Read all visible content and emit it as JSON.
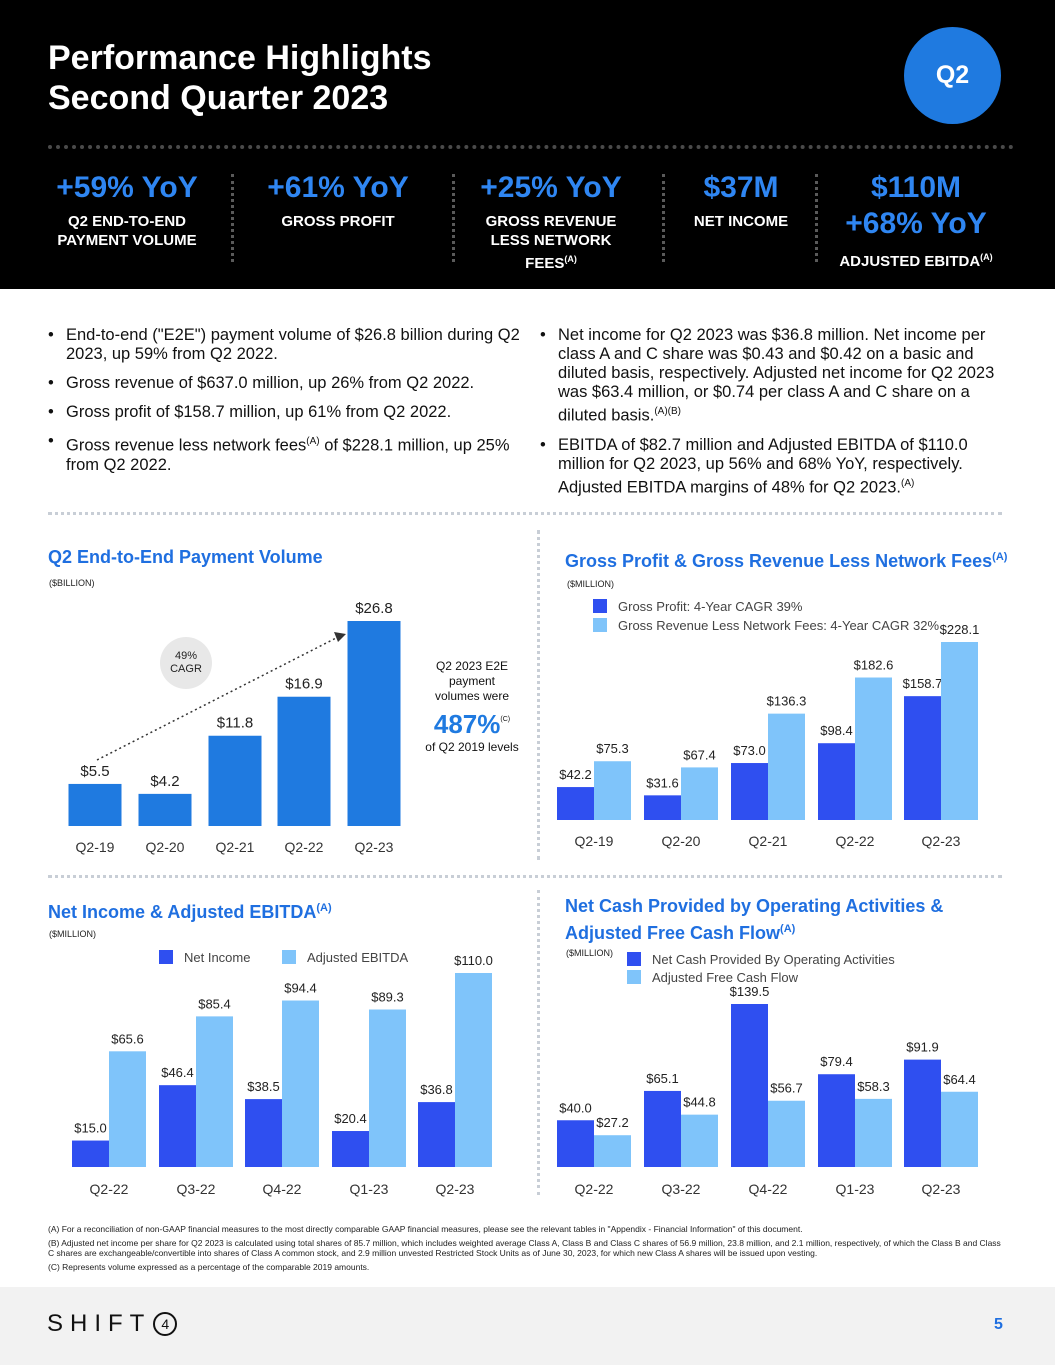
{
  "header": {
    "title_line1": "Performance Highlights",
    "title_line2": "Second Quarter 2023",
    "badge": "Q2",
    "kpis": [
      {
        "value": "+59% YoY",
        "label_line1": "Q2 END-TO-END",
        "label_line2": "PAYMENT VOLUME"
      },
      {
        "value": "+61% YoY",
        "label_line1": "GROSS PROFIT"
      },
      {
        "value": "+25% YoY",
        "label_line1": "GROSS REVENUE",
        "label_line2": "LESS NETWORK",
        "label_line3": "FEES",
        "label_sup": "(A)"
      },
      {
        "value": "$37M",
        "label_line1": "NET INCOME"
      },
      {
        "value": "$110M",
        "value2": "+68% YoY",
        "label_line1": "ADJUSTED EBITDA",
        "label_sup": "(A)"
      }
    ]
  },
  "bullets_left": [
    {
      "text": "End-to-end (\"E2E\") payment volume of $26.8 billion during Q2 2023, up 59% from Q2 2022."
    },
    {
      "text": "Gross revenue of $637.0 million, up 26% from Q2 2022."
    },
    {
      "text": "Gross profit of $158.7 million, up 61% from Q2 2022."
    },
    {
      "text_before": "Gross revenue less network fees",
      "sup": "(A)",
      "text_after": " of $228.1 million, up 25% from Q2 2022."
    }
  ],
  "bullets_right": [
    {
      "text_before": "Net income for Q2 2023 was $36.8 million. Net income per class A and C share was $0.43 and $0.42 on a basic and diluted basis, respectively. Adjusted net income for Q2 2023 was $63.4 million, or $0.74 per class A and C share on a diluted basis.",
      "sup": "(A)(B)"
    },
    {
      "text_before": "EBITDA of $82.7 million and Adjusted EBITDA of $110.0 million for Q2 2023, up 56% and 68% YoY, respectively. Adjusted EBITDA margins of 48% for Q2 2023.",
      "sup": "(A)"
    }
  ],
  "e2e_note": {
    "line1": "Q2 2023 E2E",
    "line2": "payment",
    "line3": "volumes were",
    "big": "487%",
    "big_sup": "(C)",
    "line4": "of Q2 2019 levels"
  },
  "cagr": {
    "line1": "49%",
    "line2": "CAGR"
  },
  "chart_titles": {
    "e2e": "Q2 End-to-End Payment Volume",
    "gp": "Gross Profit & Gross Revenue Less Network Fees",
    "gp_sup": "(A)",
    "ni": "Net Income & Adjusted EBITDA",
    "ni_sup": "(A)",
    "cf_line1": "Net Cash Provided by Operating Activities &",
    "cf_line2": "Adjusted Free Cash Flow",
    "cf_sup": "(A)"
  },
  "units": {
    "e2e": "($BILLION)",
    "gp": "($MILLION)",
    "ni": "($MILLION)",
    "cf": "($MILLION)"
  },
  "colors": {
    "dark_blue": "#2f4ff0",
    "light_blue": "#7fc4fa",
    "primary_blue": "#1f7ae0",
    "title_blue": "#1f6fe0"
  },
  "chart_data": [
    {
      "id": "e2e",
      "type": "bar",
      "title": "Q2 End-to-End Payment Volume",
      "ylabel": "($BILLION)",
      "categories": [
        "Q2-19",
        "Q2-20",
        "Q2-21",
        "Q2-22",
        "Q2-23"
      ],
      "series": [
        {
          "name": "E2E Payment Volume",
          "values": [
            5.5,
            4.2,
            11.8,
            16.9,
            26.8
          ],
          "labels": [
            "$5.5",
            "$4.2",
            "$11.8",
            "$16.9",
            "$26.8"
          ]
        }
      ],
      "ylim": [
        0,
        30
      ]
    },
    {
      "id": "gp",
      "type": "bar",
      "title": "Gross Profit & Gross Revenue Less Network Fees",
      "ylabel": "($MILLION)",
      "categories": [
        "Q2-19",
        "Q2-20",
        "Q2-21",
        "Q2-22",
        "Q2-23"
      ],
      "series": [
        {
          "name": "Gross Profit: 4-Year CAGR 39%",
          "values": [
            42.2,
            31.6,
            73.0,
            98.4,
            158.7
          ],
          "labels": [
            "$42.2",
            "$31.6",
            "$73.0",
            "$98.4",
            "$158.7"
          ]
        },
        {
          "name": "Gross Revenue Less Network Fees: 4-Year CAGR 32%",
          "values": [
            75.3,
            67.4,
            136.3,
            182.6,
            228.1
          ],
          "labels": [
            "$75.3",
            "$67.4",
            "$136.3",
            "$182.6",
            "$228.1"
          ]
        }
      ],
      "ylim": [
        0,
        250
      ]
    },
    {
      "id": "ni",
      "type": "bar",
      "title": "Net Income & Adjusted EBITDA",
      "ylabel": "($MILLION)",
      "categories": [
        "Q2-22",
        "Q3-22",
        "Q4-22",
        "Q1-23",
        "Q2-23"
      ],
      "series": [
        {
          "name": "Net Income",
          "values": [
            15.0,
            46.4,
            38.5,
            20.4,
            36.8
          ],
          "labels": [
            "$15.0",
            "$46.4",
            "$38.5",
            "$20.4",
            "$36.8"
          ]
        },
        {
          "name": "Adjusted EBITDA",
          "values": [
            65.6,
            85.4,
            94.4,
            89.3,
            110.0
          ],
          "labels": [
            "$65.6",
            "$85.4",
            "$94.4",
            "$89.3",
            "$110.0"
          ]
        }
      ],
      "ylim": [
        0,
        120
      ]
    },
    {
      "id": "cf",
      "type": "bar",
      "title": "Net Cash Provided by Operating Activities & Adjusted Free Cash Flow",
      "ylabel": "($MILLION)",
      "categories": [
        "Q2-22",
        "Q3-22",
        "Q4-22",
        "Q1-23",
        "Q2-23"
      ],
      "series": [
        {
          "name": "Net Cash Provided By Operating Activities",
          "values": [
            40.0,
            65.1,
            139.5,
            79.4,
            91.9
          ],
          "labels": [
            "$40.0",
            "$65.1",
            "$139.5",
            "$79.4",
            "$91.9"
          ]
        },
        {
          "name": "Adjusted Free Cash Flow",
          "values": [
            27.2,
            44.8,
            56.7,
            58.3,
            64.4
          ],
          "labels": [
            "$27.2",
            "$44.8",
            "$56.7",
            "$58.3",
            "$64.4"
          ]
        }
      ],
      "ylim": [
        0,
        150
      ]
    }
  ],
  "footnotes": {
    "a": "(A) For a reconciliation of non-GAAP financial measures to the most directly comparable GAAP financial measures, please see the relevant tables in \"Appendix - Financial Information\" of this document.",
    "b": "(B) Adjusted net income per share for Q2 2023 is calculated using total shares of 85.7 million, which includes weighted average Class A, Class B and Class C shares of 56.9 million, 23.8 million, and 2.1 million, respectively, of which the Class B and Class C shares are exchangeable/convertible into shares of Class A common stock, and 2.9 million unvested Restricted Stock Units as of June 30, 2023, for which new Class A shares will be issued upon vesting.",
    "c": "(C) Represents volume expressed as a percentage of the comparable 2019 amounts."
  },
  "footer": {
    "logo_text": "SHIFT",
    "logo_digit": "4",
    "page": "5"
  }
}
